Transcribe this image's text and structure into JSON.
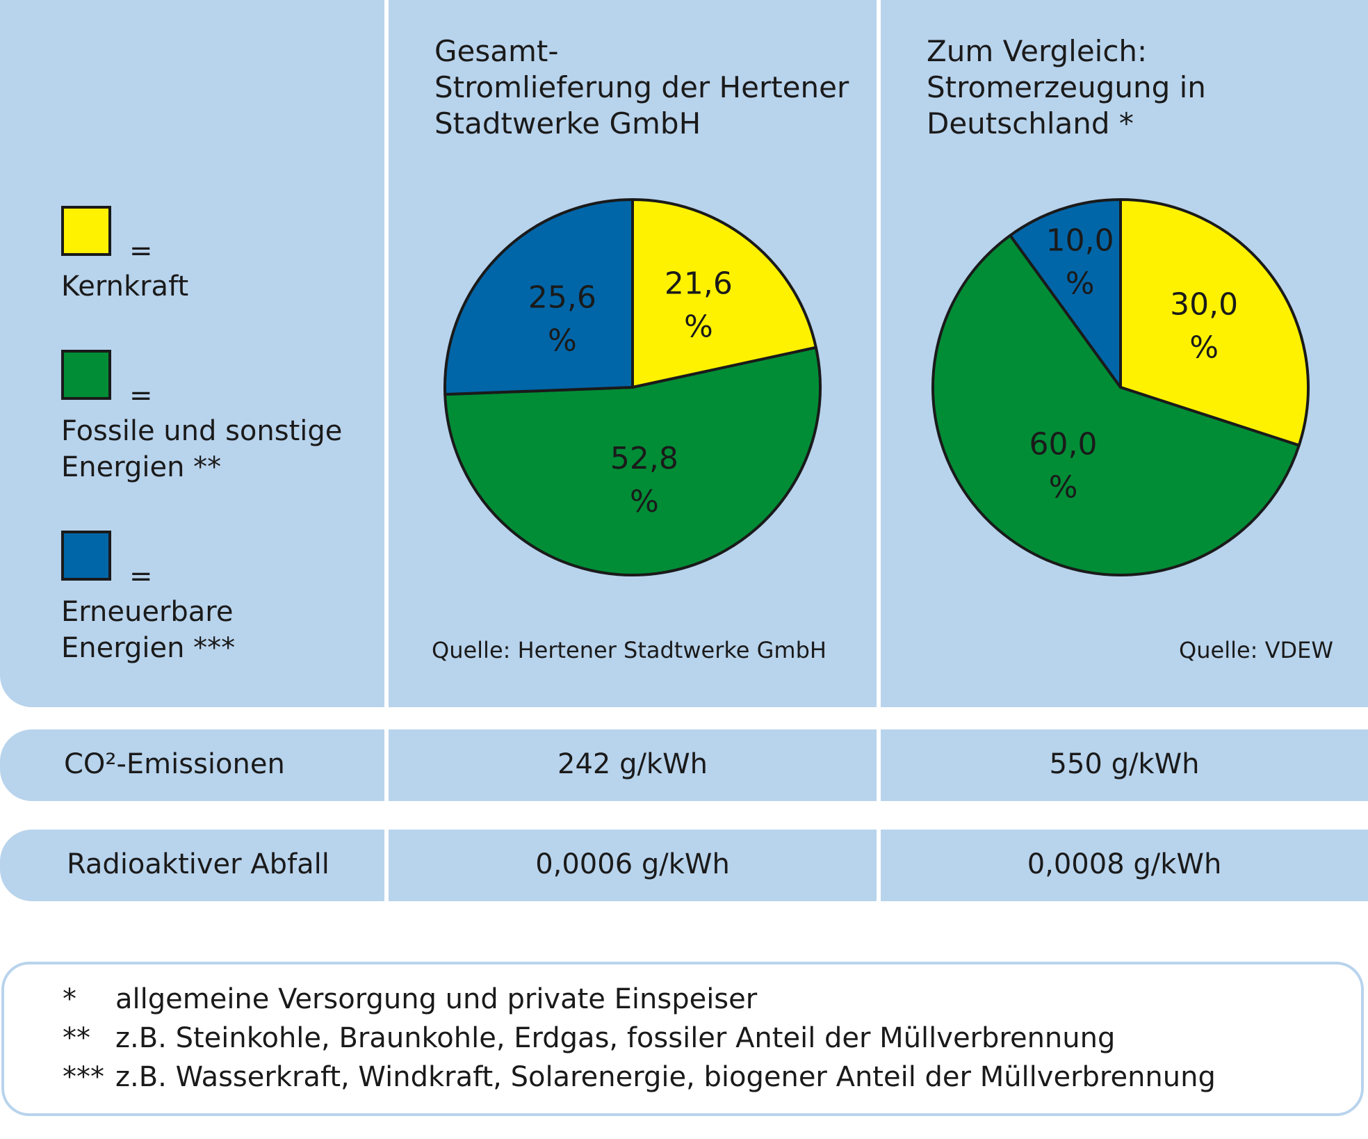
{
  "colors": {
    "yellow": "#fff200",
    "green": "#008d36",
    "blue": "#0066a8",
    "panel": "#b8d3ec"
  },
  "legend": [
    {
      "label": "Kernkraft",
      "symbol": "=",
      "color": "#fff200"
    },
    {
      "label": "Fossile und sonstige\nEnergien **",
      "symbol": "=",
      "color": "#008d36"
    },
    {
      "label": "Erneuerbare\nEnergien ***",
      "symbol": "=",
      "color": "#0066a8"
    }
  ],
  "chart_data": [
    {
      "type": "pie",
      "title": "Gesamt-\nStromlieferung der Hertener\nStadtwerke GmbH",
      "source": "Quelle: Hertener Stadtwerke GmbH",
      "slices": [
        {
          "name": "Kernkraft",
          "value": 21.6,
          "label": "21,6\n%",
          "color": "#fff200"
        },
        {
          "name": "Fossile und sonstige Energien",
          "value": 52.8,
          "label": "52,8\n%",
          "color": "#008d36"
        },
        {
          "name": "Erneuerbare Energien",
          "value": 25.6,
          "label": "25,6\n%",
          "color": "#0066a8"
        }
      ]
    },
    {
      "type": "pie",
      "title": "Zum Vergleich:\nStromerzeugung in\nDeutschland *",
      "source": "Quelle: VDEW",
      "slices": [
        {
          "name": "Kernkraft",
          "value": 30.0,
          "label": "30,0\n%",
          "color": "#fff200"
        },
        {
          "name": "Fossile und sonstige Energien",
          "value": 60.0,
          "label": "60,0\n%",
          "color": "#008d36"
        },
        {
          "name": "Erneuerbare Energien",
          "value": 10.0,
          "label": "10,0\n%",
          "color": "#0066a8"
        }
      ]
    }
  ],
  "rows": [
    {
      "label": "CO²-Emissionen",
      "values": [
        "242 g/kWh",
        "550 g/kWh"
      ]
    },
    {
      "label": "Radioaktiver Abfall",
      "values": [
        "0,0006 g/kWh",
        "0,0008 g/kWh"
      ]
    }
  ],
  "footnotes": [
    {
      "mark": "*",
      "text": "allgemeine Versorgung und private Einspeiser"
    },
    {
      "mark": "**",
      "text": "z.B. Steinkohle, Braunkohle, Erdgas, fossiler Anteil der Müllverbrennung"
    },
    {
      "mark": "***",
      "text": "z.B. Wasserkraft, Windkraft, Solarenergie, biogener Anteil der Müllverbrennung"
    }
  ]
}
